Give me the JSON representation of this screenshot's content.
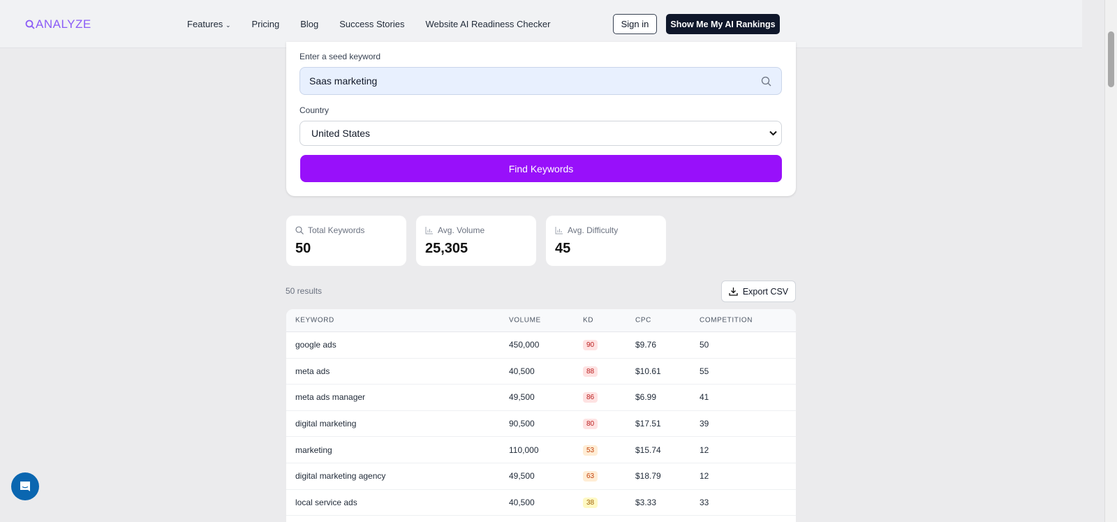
{
  "nav": {
    "logo": "ANALYZE",
    "links": [
      "Features",
      "Pricing",
      "Blog",
      "Success Stories",
      "Website AI Readiness Checker"
    ],
    "sign_in": "Sign in",
    "cta": "Show Me My AI Rankings"
  },
  "form": {
    "seed_label": "Enter a seed keyword",
    "seed_value": "Saas marketing",
    "country_label": "Country",
    "country_value": "United States",
    "submit": "Find Keywords"
  },
  "stats": [
    {
      "label": "Total Keywords",
      "value": "50",
      "icon": "search-icon"
    },
    {
      "label": "Avg. Volume",
      "value": "25,305",
      "icon": "bar-chart-icon"
    },
    {
      "label": "Avg. Difficulty",
      "value": "45",
      "icon": "bar-chart-icon"
    }
  ],
  "results": {
    "count_text": "50 results",
    "export": "Export CSV"
  },
  "table": {
    "headers": [
      "KEYWORD",
      "VOLUME",
      "KD",
      "CPC",
      "COMPETITION"
    ],
    "rows": [
      [
        "google ads",
        "450,000",
        "90",
        "$9.76",
        "50"
      ],
      [
        "meta ads",
        "40,500",
        "88",
        "$10.61",
        "55"
      ],
      [
        "meta ads manager",
        "49,500",
        "86",
        "$6.99",
        "41"
      ],
      [
        "digital marketing",
        "90,500",
        "80",
        "$17.51",
        "39"
      ],
      [
        "marketing",
        "110,000",
        "53",
        "$15.74",
        "12"
      ],
      [
        "digital marketing agency",
        "49,500",
        "63",
        "$18.79",
        "12"
      ],
      [
        "local service ads",
        "40,500",
        "38",
        "$3.33",
        "33"
      ]
    ]
  },
  "colors": {
    "accent": "#9810fa",
    "kd_high_bg": "#fee2e2",
    "kd_high_text": "#b91c1c",
    "kd_mid_bg": "#ffedd5",
    "kd_mid_text": "#c2410c",
    "kd_low_bg": "#fef9c3",
    "kd_low_text": "#a16207",
    "chat": "#0a66b0"
  }
}
